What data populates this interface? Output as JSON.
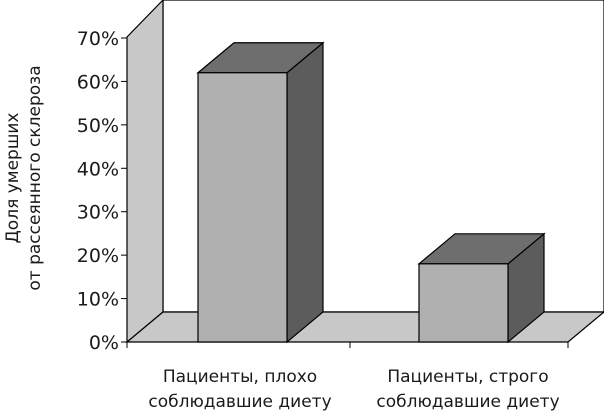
{
  "chart_data": {
    "type": "bar",
    "categories": [
      [
        "Пациенты, плохо",
        "соблюдавшие диету"
      ],
      [
        "Пациенты, строго",
        "соблюдавшие диету"
      ]
    ],
    "values": [
      62,
      18
    ],
    "ylabel": [
      "Доля умерших",
      "от рассеянного склероза"
    ],
    "ylim": [
      0,
      70
    ],
    "yticks": [
      "0%",
      "10%",
      "20%",
      "30%",
      "40%",
      "50%",
      "60%",
      "70%"
    ],
    "grid": false,
    "legend": "none",
    "style": "3d",
    "colors": {
      "bar_front": "#b0b0b0",
      "bar_top": "#6e6e6e",
      "bar_side": "#5c5c5c",
      "wall": "#ffffff",
      "wall_side": "#c8c8c8",
      "floor": "#c8c8c8",
      "edge": "#000000"
    }
  }
}
